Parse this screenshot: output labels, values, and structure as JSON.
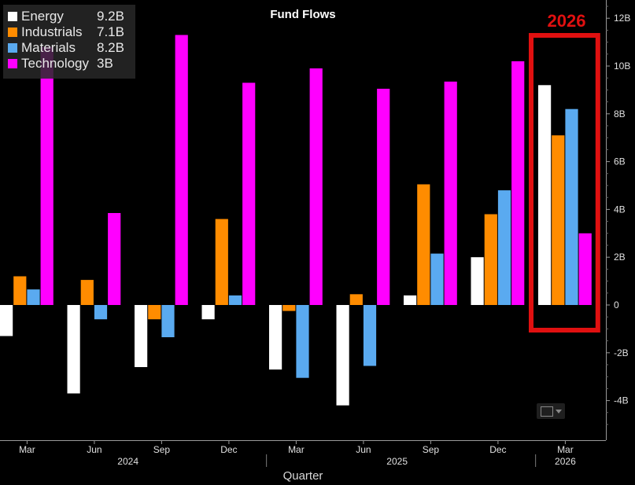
{
  "chart_data": {
    "type": "bar",
    "title": "Fund Flows",
    "xlabel": "Quarter",
    "ylabel": "",
    "ylim": [
      -5.7,
      13
    ],
    "y_ticks": [
      "-4B",
      "-2B",
      "0",
      "2B",
      "4B",
      "6B",
      "8B",
      "10B",
      "12B"
    ],
    "y_tick_values": [
      -4,
      -2,
      0,
      2,
      4,
      6,
      8,
      10,
      12
    ],
    "categories": [
      "Mar",
      "Jun",
      "Sep",
      "Dec",
      "Mar",
      "Jun",
      "Sep",
      "Dec",
      "Mar"
    ],
    "year_labels": [
      {
        "label": "2024",
        "start": 0,
        "end": 3
      },
      {
        "label": "2025",
        "start": 4,
        "end": 7
      },
      {
        "label": "2026",
        "start": 8,
        "end": 8
      }
    ],
    "series": [
      {
        "name": "Energy",
        "color": "#ffffff",
        "latest": "9.2B",
        "values": [
          -1.3,
          -3.7,
          -2.6,
          -0.6,
          -2.7,
          -4.2,
          0.4,
          2.0,
          9.2
        ]
      },
      {
        "name": "Industrials",
        "color": "#ff8c00",
        "latest": "7.1B",
        "values": [
          1.2,
          1.05,
          -0.6,
          3.6,
          -0.25,
          0.45,
          5.05,
          3.8,
          7.1
        ]
      },
      {
        "name": "Materials",
        "color": "#5aaaf0",
        "latest": "8.2B",
        "values": [
          0.65,
          -0.6,
          -1.35,
          0.4,
          -3.05,
          -2.55,
          2.15,
          4.8,
          8.2
        ]
      },
      {
        "name": "Technology",
        "color": "#ff00ff",
        "latest": "3B",
        "values": [
          10.8,
          3.85,
          11.3,
          9.3,
          9.9,
          9.05,
          9.35,
          10.2,
          3.0
        ]
      }
    ],
    "legend": "top-left",
    "grid": false,
    "annotation": {
      "text": "2026",
      "color": "#e01010",
      "target_category": 8
    }
  }
}
